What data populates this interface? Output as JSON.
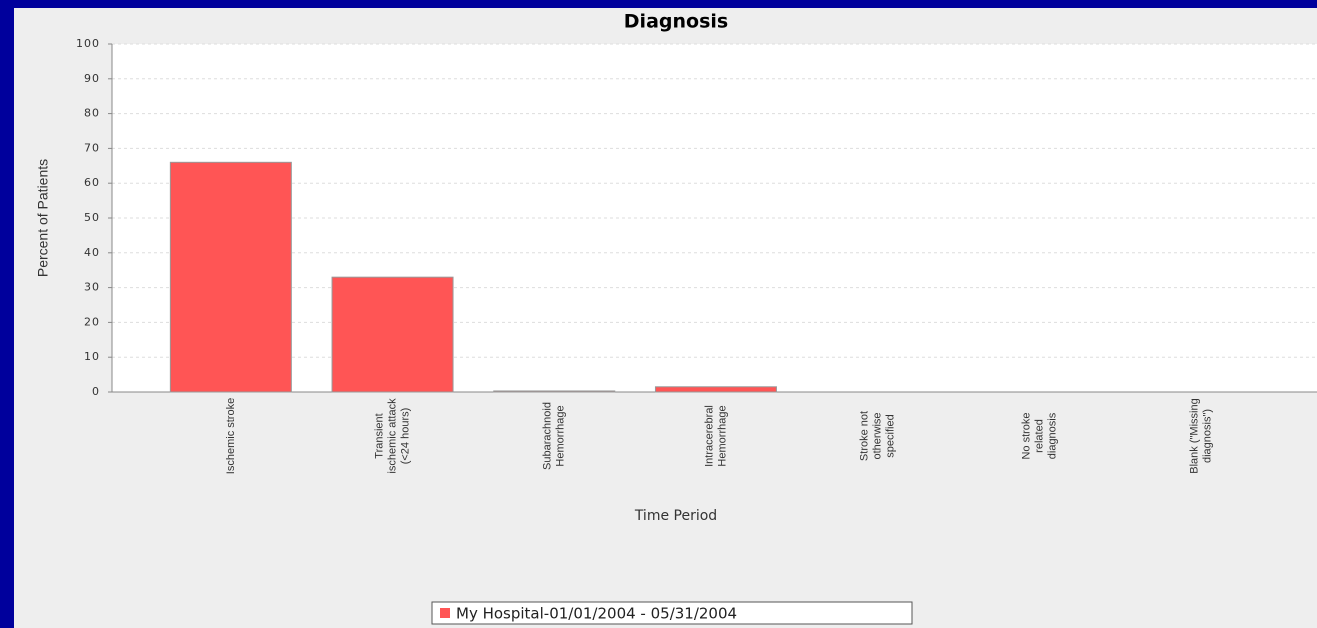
{
  "chart_data": {
    "type": "bar",
    "title": "Diagnosis",
    "y_label": "Percent of Patients",
    "x_label": "Time Period",
    "categories": [
      [
        "Ischemic stroke"
      ],
      [
        "Transient",
        "ischemic attack",
        "(<24 hours)"
      ],
      [
        "Subarachnoid",
        "Hemorrhage"
      ],
      [
        "Intracerebral",
        "Hemorrhage"
      ],
      [
        "Stroke not",
        "otherwise",
        "specified"
      ],
      [
        "No stroke",
        "related",
        "diagnosis"
      ],
      [
        "Blank (\"Missing",
        "diagnosis\")"
      ]
    ],
    "series": [
      {
        "name": "My Hospital-01/01/2004 - 05/31/2004",
        "color": "#ff5555",
        "values": [
          66,
          33,
          0.3,
          1.5,
          0,
          0,
          0
        ]
      }
    ],
    "ylim": [
      0,
      100
    ],
    "yticks": [
      0,
      10,
      20,
      30,
      40,
      50,
      60,
      70,
      80,
      90,
      100
    ],
    "grid": true,
    "legend": "bottom"
  }
}
